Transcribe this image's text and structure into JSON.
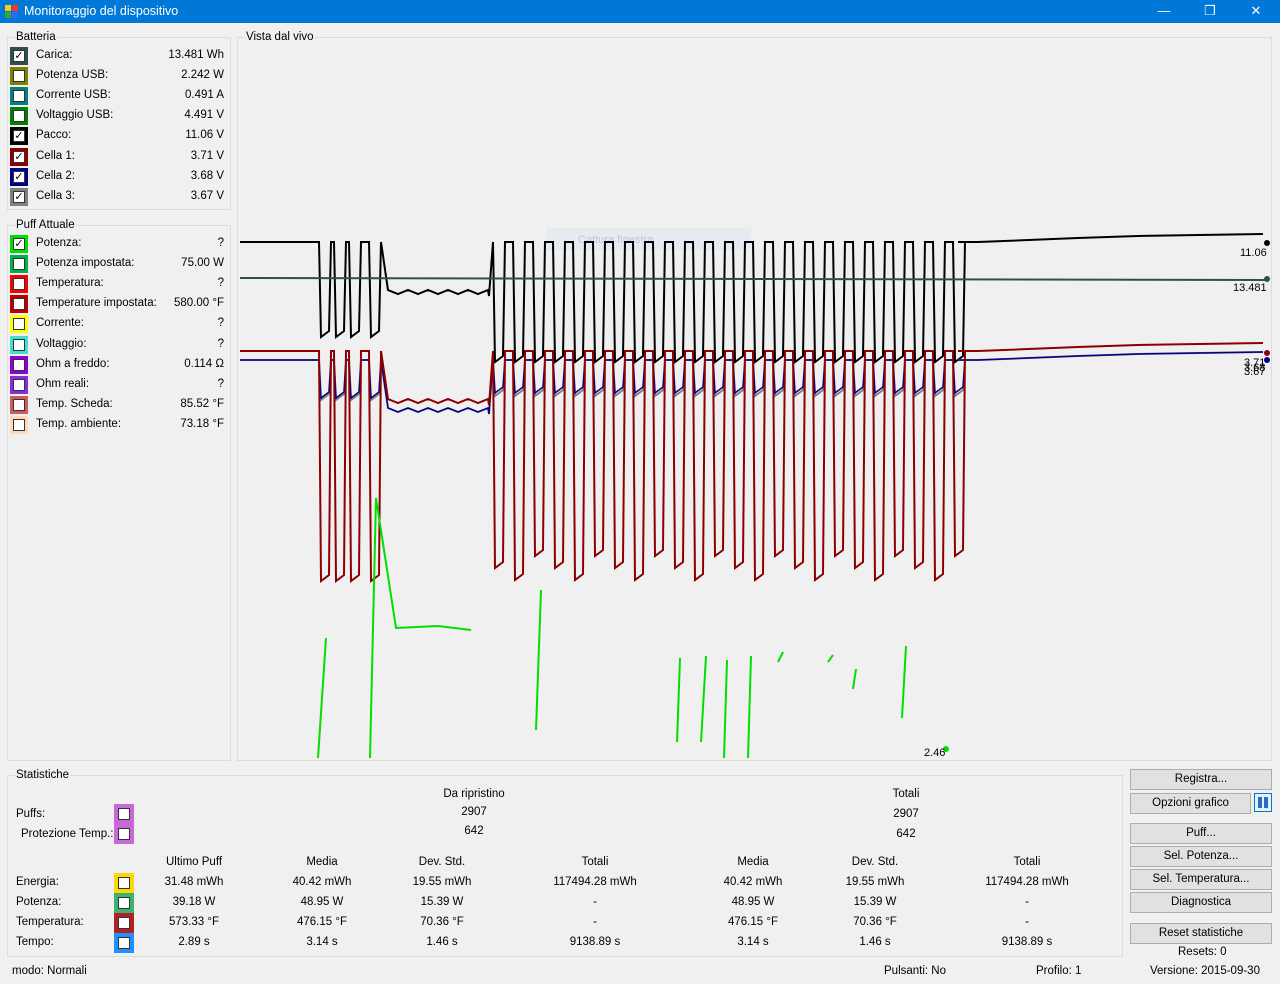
{
  "window": {
    "title": "Monitoraggio del dispositivo"
  },
  "battery": {
    "title": "Batteria",
    "rows": [
      {
        "label": "Carica:",
        "value": "13.481 Wh",
        "checked": true,
        "color": "#2f4f4f"
      },
      {
        "label": "Potenza USB:",
        "value": "2.242 W",
        "checked": false,
        "color": "#808000"
      },
      {
        "label": "Corrente USB:",
        "value": "0.491 A",
        "checked": false,
        "color": "#008080"
      },
      {
        "label": "Voltaggio USB:",
        "value": "4.491 V",
        "checked": false,
        "color": "#008000"
      },
      {
        "label": "Pacco:",
        "value": "11.06 V",
        "checked": true,
        "color": "#000000"
      },
      {
        "label": "Cella 1:",
        "value": "3.71 V",
        "checked": true,
        "color": "#8b0000"
      },
      {
        "label": "Cella 2:",
        "value": "3.68 V",
        "checked": true,
        "color": "#00008b"
      },
      {
        "label": "Cella 3:",
        "value": "3.67 V",
        "checked": true,
        "color": "#808080"
      }
    ]
  },
  "puff": {
    "title": "Puff Attuale",
    "rows": [
      {
        "label": "Potenza:",
        "value": "?",
        "checked": true,
        "color": "#00e000"
      },
      {
        "label": "Potenza impostata:",
        "value": "75.00 W",
        "checked": false,
        "color": "#00b050"
      },
      {
        "label": "Temperatura:",
        "value": "?",
        "checked": false,
        "color": "#ff0000"
      },
      {
        "label": "Temperature impostata:",
        "value": "580.00 °F",
        "checked": false,
        "color": "#c00000"
      },
      {
        "label": "Corrente:",
        "value": "?",
        "checked": false,
        "color": "#ffff00"
      },
      {
        "label": "Voltaggio:",
        "value": "?",
        "checked": false,
        "color": "#40e0d0"
      },
      {
        "label": "Ohm a freddo:",
        "value": "0.114 Ω",
        "checked": false,
        "color": "#9400d3"
      },
      {
        "label": "Ohm reali:",
        "value": "?",
        "checked": false,
        "color": "#8a2be2"
      },
      {
        "label": "Temp. Scheda:",
        "value": "85.52 °F",
        "checked": false,
        "color": "#cd5c5c"
      },
      {
        "label": "Temp. ambiente:",
        "value": "73.18 °F",
        "checked": false,
        "color": "#ffdab9"
      }
    ]
  },
  "live": {
    "title": "Vista dal vivo",
    "overlay": "Cattura finestra",
    "labels": {
      "pack": "11.06",
      "charge": "13.481",
      "cell_a": "3.71",
      "cell_b": "3.68",
      "cell_c": "3.67",
      "power": "2.46"
    },
    "colors": {
      "pack": "#000000",
      "charge": "#2f4f4f",
      "cell1": "#8b0000",
      "cell2": "#00008b",
      "cell3": "#808080",
      "power": "#00e000"
    }
  },
  "stats": {
    "title": "Statistiche",
    "col_da_ripristino": "Da ripristino",
    "col_totali": "Totali",
    "puffs_label": "Puffs:",
    "protezione_label": "Protezione Temp.:",
    "puffs_reset": "2907",
    "puffs_total": "2907",
    "prot_reset": "642",
    "prot_total": "642",
    "headers": [
      "Ultimo Puff",
      "Media",
      "Dev. Std.",
      "Totali",
      "Media",
      "Dev. Std.",
      "Totali"
    ],
    "rows": [
      {
        "label": "Energia:",
        "color": "#ffd700",
        "values": [
          "31.48 mWh",
          "40.42 mWh",
          "19.55 mWh",
          "117494.28 mWh",
          "40.42 mWh",
          "19.55 mWh",
          "117494.28 mWh"
        ]
      },
      {
        "label": "Potenza:",
        "color": "#3cb371",
        "values": [
          "39.18 W",
          "48.95 W",
          "15.39 W",
          "-",
          "48.95 W",
          "15.39 W",
          "-"
        ]
      },
      {
        "label": "Temperatura:",
        "color": "#b22222",
        "values": [
          "573.33 °F",
          "476.15 °F",
          "70.36 °F",
          "-",
          "476.15 °F",
          "70.36 °F",
          "-"
        ]
      },
      {
        "label": "Tempo:",
        "color": "#1e90ff",
        "values": [
          "2.89 s",
          "3.14 s",
          "1.46 s",
          "9138.89 s",
          "3.14 s",
          "1.46 s",
          "9138.89 s"
        ]
      }
    ]
  },
  "buttons": {
    "registra": "Registra...",
    "opzioni": "Opzioni grafico",
    "puff": "Puff...",
    "sel_potenza": "Sel. Potenza...",
    "sel_temperatura": "Sel. Temperatura...",
    "diagnostica": "Diagnostica",
    "reset": "Reset statistiche",
    "resets": "Resets: 0"
  },
  "status": {
    "modo": "modo: Normali",
    "pulsanti": "Pulsanti: No",
    "profilo": "Profilo: 1",
    "versione": "Versione: 2015-09-30"
  }
}
